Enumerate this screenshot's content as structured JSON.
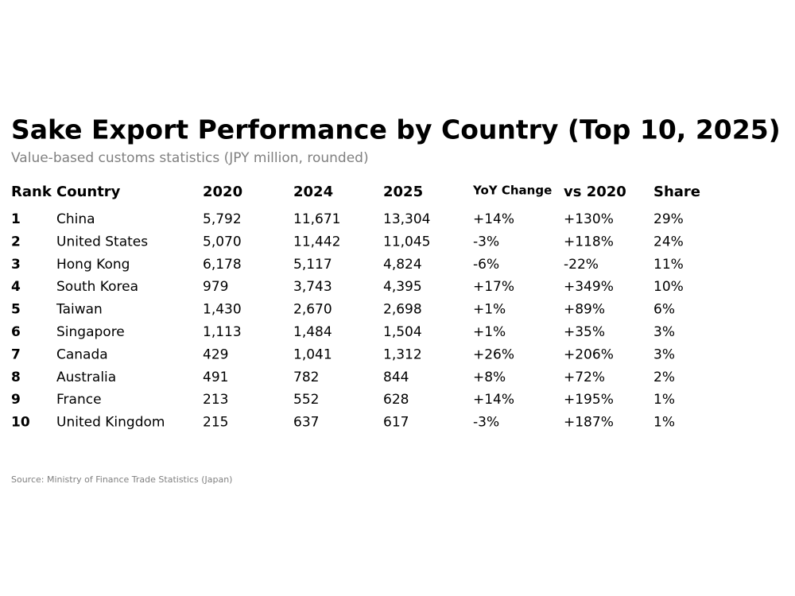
{
  "title": "Sake Export Performance by Country (Top 10, 2025)",
  "subtitle": "Value-based customs statistics (JPY million, rounded)",
  "table": {
    "header": [
      "Rank",
      "Country",
      "2020",
      "2024",
      "2025",
      "YoY Change",
      "vs 2020",
      "Share"
    ],
    "rows": [
      [
        "1",
        "China",
        "5,792",
        "11,671",
        "13,304",
        "+14%",
        "+130%",
        "29%"
      ],
      [
        "2",
        "United States",
        "5,070",
        "11,442",
        "11,045",
        "-3%",
        "+118%",
        "24%"
      ],
      [
        "3",
        "Hong Kong",
        "6,178",
        "5,117",
        "4,824",
        "-6%",
        "-22%",
        "11%"
      ],
      [
        "4",
        "South Korea",
        "979",
        "3,743",
        "4,395",
        "+17%",
        "+349%",
        "10%"
      ],
      [
        "5",
        "Taiwan",
        "1,430",
        "2,670",
        "2,698",
        "+1%",
        "+89%",
        "6%"
      ],
      [
        "6",
        "Singapore",
        "1,113",
        "1,484",
        "1,504",
        "+1%",
        "+35%",
        "3%"
      ],
      [
        "7",
        "Canada",
        "429",
        "1,041",
        "1,312",
        "+26%",
        "+206%",
        "3%"
      ],
      [
        "8",
        "Australia",
        "491",
        "782",
        "844",
        "+8%",
        "+72%",
        "2%"
      ],
      [
        "9",
        "France",
        "213",
        "552",
        "628",
        "+14%",
        "+195%",
        "1%"
      ],
      [
        "10",
        "United Kingdom",
        "215",
        "637",
        "617",
        "-3%",
        "+187%",
        "1%"
      ]
    ]
  },
  "source": "Source: Ministry of Finance Trade Statistics (Japan)"
}
